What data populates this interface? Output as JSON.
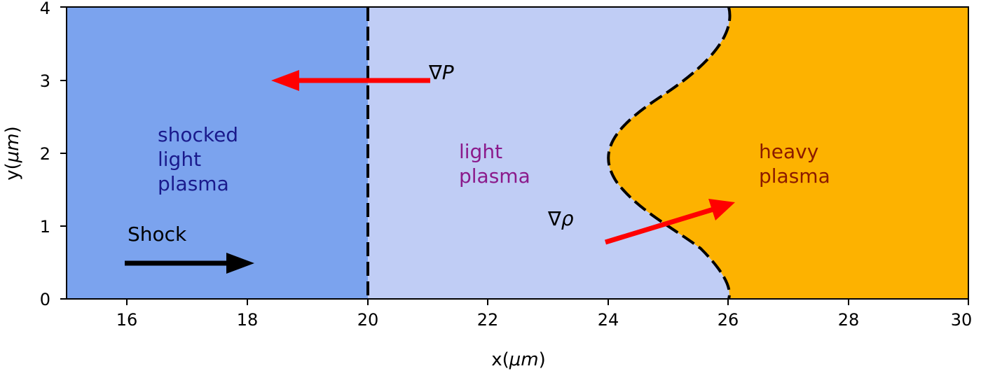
{
  "figure": {
    "x_axis": {
      "label_prefix": "x(",
      "label_unit": "μm",
      "label_suffix": ")",
      "ticks": [
        "16",
        "18",
        "20",
        "22",
        "24",
        "26",
        "28",
        "30"
      ]
    },
    "y_axis": {
      "label_prefix": "y(",
      "label_unit": "μm",
      "label_suffix": ")",
      "ticks": [
        "0",
        "1",
        "2",
        "3",
        "4"
      ]
    },
    "regions": {
      "shocked": {
        "line1": "shocked",
        "line2": "light",
        "line3": "plasma",
        "fill": "#7ba3ee",
        "text_color": "#1a1a8c"
      },
      "light": {
        "line1": "light",
        "line2": "plasma",
        "fill": "#c0cdf5",
        "text_color": "#8b1a8b"
      },
      "heavy": {
        "line1": "heavy",
        "line2": "plasma",
        "fill": "#fdb200",
        "text_color": "#8b1a00"
      }
    },
    "annotations": {
      "shock_label": "Shock",
      "grad_p_symbol": "∇",
      "grad_p_var": "P",
      "grad_rho_symbol": "∇",
      "grad_rho_var": "ρ"
    },
    "colors": {
      "shock_arrow": "#000000",
      "gradient_arrows": "#ff0000",
      "interfaces": "#000000"
    }
  }
}
